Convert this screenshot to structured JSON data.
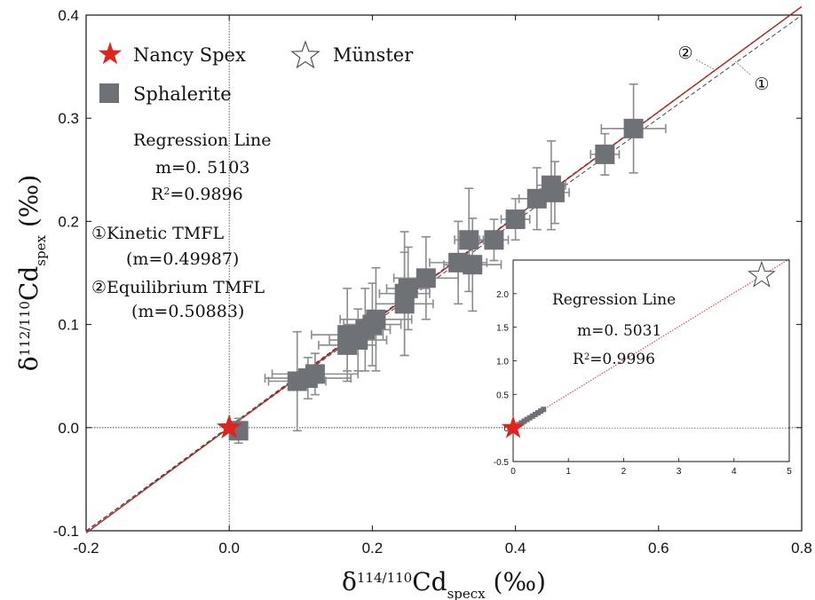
{
  "chart_data": {
    "type": "scatter",
    "xlabel_parts": {
      "base": "δ",
      "sup": "114/110",
      "mid": "Cd",
      "sub": "specx",
      "unit": " (‰)"
    },
    "ylabel_parts": {
      "base": "δ",
      "sup": "112/110",
      "mid": "Cd",
      "sub": "spex",
      "unit": " (‰)"
    },
    "xlim": [
      -0.2,
      0.8
    ],
    "ylim": [
      -0.1,
      0.4
    ],
    "x_ticks": [
      "-0.2",
      "0.0",
      "0.2",
      "0.4",
      "0.6",
      "0.8"
    ],
    "y_ticks": [
      "-0.1",
      "0.0",
      "0.1",
      "0.2",
      "0.3",
      "0.4"
    ],
    "x_tick_values": [
      -0.2,
      0.0,
      0.2,
      0.4,
      0.6,
      0.8
    ],
    "y_tick_values": [
      -0.1,
      0.0,
      0.1,
      0.2,
      0.3,
      0.4
    ],
    "legend": [
      {
        "label": "Nancy Spex",
        "marker": "star-filled",
        "color": "#e0231f"
      },
      {
        "label": "Münster",
        "marker": "star-open",
        "color": "#444444"
      },
      {
        "label": "Sphalerite",
        "marker": "square",
        "color": "#6e7175"
      }
    ],
    "annotations": {
      "regression_title": "Regression Line",
      "regression_m": "m=0. 5103",
      "regression_r2_base": "R",
      "regression_r2_sup": "2",
      "regression_r2_val": "=0.9896",
      "kinetic": "①Kinetic  TMFL",
      "kinetic_m": "(m=0.49987)",
      "equilibrium": "②Equilibrium TMFL",
      "equilibrium_m": "(m=0.50883)",
      "marker1": "①",
      "marker2": "②"
    },
    "colors": {
      "sphalerite": "#6e7175",
      "errorbar": "#8a8c8f",
      "regression": "#b0261f",
      "nancy": "#e0231f"
    },
    "nancy_spex": {
      "x": 0.0,
      "y": 0.0
    },
    "sphalerite": [
      {
        "x": 0.013,
        "y": -0.003,
        "ex": 0.012,
        "ey": 0.012
      },
      {
        "x": 0.095,
        "y": 0.045,
        "ex": 0.04,
        "ey": 0.048
      },
      {
        "x": 0.11,
        "y": 0.048,
        "ex": 0.06,
        "ey": 0.02
      },
      {
        "x": 0.12,
        "y": 0.052,
        "ex": 0.06,
        "ey": 0.02
      },
      {
        "x": 0.165,
        "y": 0.09,
        "ex": 0.05,
        "ey": 0.045
      },
      {
        "x": 0.165,
        "y": 0.08,
        "ex": 0.04,
        "ey": 0.025
      },
      {
        "x": 0.18,
        "y": 0.085,
        "ex": 0.04,
        "ey": 0.03
      },
      {
        "x": 0.19,
        "y": 0.095,
        "ex": 0.035,
        "ey": 0.04
      },
      {
        "x": 0.2,
        "y": 0.1,
        "ex": 0.04,
        "ey": 0.04
      },
      {
        "x": 0.205,
        "y": 0.105,
        "ex": 0.05,
        "ey": 0.05
      },
      {
        "x": 0.245,
        "y": 0.12,
        "ex": 0.04,
        "ey": 0.05
      },
      {
        "x": 0.245,
        "y": 0.13,
        "ex": 0.035,
        "ey": 0.06
      },
      {
        "x": 0.25,
        "y": 0.135,
        "ex": 0.03,
        "ey": 0.04
      },
      {
        "x": 0.275,
        "y": 0.145,
        "ex": 0.045,
        "ey": 0.04
      },
      {
        "x": 0.32,
        "y": 0.16,
        "ex": 0.04,
        "ey": 0.04
      },
      {
        "x": 0.34,
        "y": 0.158,
        "ex": 0.04,
        "ey": 0.045
      },
      {
        "x": 0.335,
        "y": 0.182,
        "ex": 0.02,
        "ey": 0.05
      },
      {
        "x": 0.37,
        "y": 0.182,
        "ex": 0.02,
        "ey": 0.02
      },
      {
        "x": 0.4,
        "y": 0.202,
        "ex": 0.02,
        "ey": 0.02
      },
      {
        "x": 0.43,
        "y": 0.222,
        "ex": 0.025,
        "ey": 0.03
      },
      {
        "x": 0.45,
        "y": 0.235,
        "ex": 0.02,
        "ey": 0.043
      },
      {
        "x": 0.455,
        "y": 0.228,
        "ex": 0.02,
        "ey": 0.03
      },
      {
        "x": 0.525,
        "y": 0.265,
        "ex": 0.02,
        "ey": 0.02
      },
      {
        "x": 0.565,
        "y": 0.29,
        "ex": 0.045,
        "ey": 0.043
      }
    ],
    "regression": {
      "slope": 0.5103,
      "intercept": 0.0
    },
    "inset": {
      "xlim": [
        0,
        5
      ],
      "ylim": [
        -0.5,
        2.5
      ],
      "x_ticks": [
        "0",
        "1",
        "2",
        "3",
        "4",
        "5"
      ],
      "y_ticks": [
        "-0.5",
        "0",
        "0.5",
        "1.0",
        "1.5",
        "2.0"
      ],
      "x_tick_values": [
        0,
        1,
        2,
        3,
        4,
        5
      ],
      "y_tick_values": [
        -0.5,
        0,
        0.5,
        1.0,
        1.5,
        2.0
      ],
      "regression_title": "Regression Line",
      "regression_m": "m=0. 5031",
      "regression_r2_base": "R",
      "regression_r2_sup": "2",
      "regression_r2_val": "=0.9996",
      "nancy_spex": {
        "x": 0.0,
        "y": 0.0
      },
      "munster": {
        "x": 4.5,
        "y": 2.27
      },
      "sphalerite_x": [
        0.1,
        0.15,
        0.2,
        0.25,
        0.3,
        0.35,
        0.4,
        0.45,
        0.5,
        0.55
      ],
      "regression": {
        "slope": 0.5031,
        "intercept": 0.0
      }
    }
  }
}
